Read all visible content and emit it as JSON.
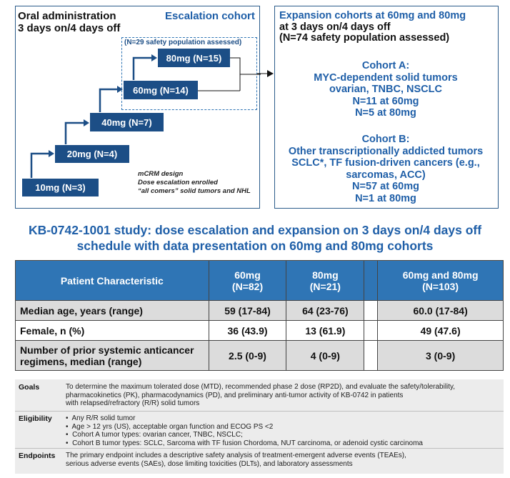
{
  "escalation": {
    "header_line1": "Oral administration",
    "header_line2": "3 days on/4 days off",
    "cohort_title": "Escalation cohort",
    "safety_note": "(N=29 safety population assessed)",
    "steps": [
      "10mg (N=3)",
      "20mg (N=4)",
      "40mg (N=7)",
      "60mg (N=14)",
      "80mg (N=15)"
    ],
    "design_line1": "mCRM design",
    "design_line2": "Dose escalation enrolled",
    "design_line3": "“all comers” solid tumors and NHL"
  },
  "expansion": {
    "title_line1": "Expansion cohorts at 60mg and 80mg",
    "title_line2": "at 3 days on/4 days off",
    "title_line3": "(N=74 safety population assessed)",
    "cohort_a": {
      "title": "Cohort A:",
      "line1": "MYC-dependent solid tumors",
      "line2": "ovarian, TNBC, NSCLC",
      "line3": "N=11 at 60mg",
      "line4": "N=5 at 80mg"
    },
    "cohort_b": {
      "title": "Cohort B:",
      "line1": "Other transcriptionally addicted tumors",
      "line2": "SCLC*, TF fusion-driven cancers (e.g.,",
      "line3": "sarcomas, ACC)",
      "line4": "N=57 at 60mg",
      "line5": "N=1 at 80mg"
    }
  },
  "study_title_line1": "KB-0742-1001 study: dose escalation and expansion on 3 days on/4 days off",
  "study_title_line2": "schedule with data presentation on 60mg and 80mg cohorts",
  "table": {
    "header": {
      "label": "Patient Characteristic",
      "col1_line1": "60mg",
      "col1_line2": "(N=82)",
      "col2_line1": "80mg",
      "col2_line2": "(N=21)",
      "col3_line1": "60mg and 80mg",
      "col3_line2": "(N=103)"
    },
    "rows": [
      {
        "label_line1": "Median age, years (range)",
        "label_line2": "",
        "v1": "59 (17-84)",
        "v2": "64 (23-76)",
        "v3": "60.0 (17-84)"
      },
      {
        "label_line1": "Female, n (%)",
        "label_line2": "",
        "v1": "36 (43.9)",
        "v2": "13 (61.9)",
        "v3": "49 (47.6)"
      },
      {
        "label_line1": "Number of prior systemic anticancer",
        "label_line2": "regimens, median (range)",
        "v1": "2.5 (0-9)",
        "v2": "4 (0-9)",
        "v3": "3 (0-9)"
      }
    ]
  },
  "info": {
    "goals_label": "Goals",
    "goals_line1": "To determine the maximum tolerated dose (MTD), recommended phase 2 dose (RP2D), and evaluate the safety/tolerability,",
    "goals_line2": "pharmacokinetics (PK), pharmacodynamics (PD), and preliminary anti-tumor activity of KB-0742 in patients",
    "goals_line3": "with relapsed/refractory (R/R) solid tumors",
    "eligibility_label": "Eligibility",
    "eligibility_items": [
      "Any R/R solid tumor",
      "Age > 12 yrs (US), acceptable  organ function and ECOG PS <2",
      "Cohort A tumor types: ovarian cancer, TNBC, NSCLC;",
      "Cohort B tumor types: SCLC, Sarcoma with TF fusion Chordoma, NUT carcinoma, or adenoid cystic carcinoma"
    ],
    "endpoints_label": "Endpoints",
    "endpoints_line1": "The primary endpoint includes a descriptive safety analysis of treatment-emergent adverse events (TEAEs),",
    "endpoints_line2": "serious adverse events (SAEs), dose limiting toxicities (DLTs), and laboratory assessments"
  }
}
